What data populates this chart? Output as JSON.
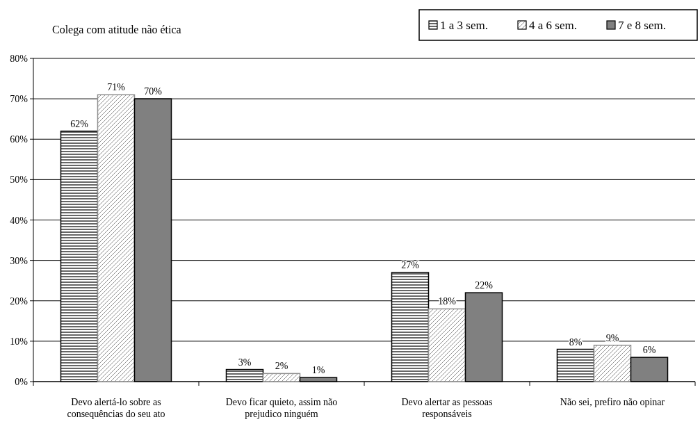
{
  "chart_data": {
    "type": "bar",
    "title": "Colega com atitude não ética",
    "categories": [
      "Devo alertá-lo sobre as consequências do seu ato",
      "Devo ficar quieto, assim não prejudico ninguém",
      "Devo alertar as pessoas responsáveis",
      "Não sei, prefiro não opinar"
    ],
    "series": [
      {
        "name": "1 a 3 sem.",
        "color": "#000000",
        "values": [
          62,
          3,
          27,
          8
        ]
      },
      {
        "name": "4 a 6 sem.",
        "color": "#909090",
        "values": [
          71,
          2,
          18,
          9
        ]
      },
      {
        "name": "7 e 8 sem.",
        "color": "#808080",
        "values": [
          70,
          1,
          22,
          6
        ]
      }
    ],
    "ylim": [
      0,
      80
    ],
    "yticks": [
      {
        "value": 0,
        "label": "0%"
      },
      {
        "value": 10,
        "label": "10%"
      },
      {
        "value": 20,
        "label": "20%"
      },
      {
        "value": 30,
        "label": "30%"
      },
      {
        "value": 40,
        "label": "40%"
      },
      {
        "value": 50,
        "label": "50%"
      },
      {
        "value": 60,
        "label": "60%"
      },
      {
        "value": 70,
        "label": "70%"
      },
      {
        "value": 80,
        "label": "80%"
      }
    ],
    "value_labels": [
      [
        "62%",
        "3%",
        "27%",
        "8%"
      ],
      [
        "71%",
        "2%",
        "18%",
        "9%"
      ],
      [
        "70%",
        "1%",
        "22%",
        "6%"
      ]
    ],
    "grid": "y",
    "legend": "top right"
  }
}
